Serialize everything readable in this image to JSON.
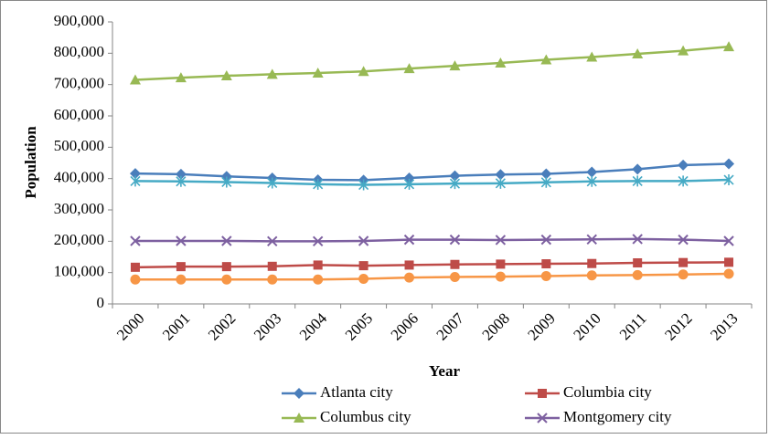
{
  "chart_data": {
    "type": "line",
    "x_label": "Year",
    "y_label": "Population",
    "categories": [
      "2000",
      "2001",
      "2002",
      "2003",
      "2004",
      "2005",
      "2006",
      "2007",
      "2008",
      "2009",
      "2010",
      "2011",
      "2012",
      "2013"
    ],
    "series": [
      {
        "name": "Atlanta city",
        "color": "#4a7ebb",
        "marker": "diamond",
        "values": [
          416000,
          414000,
          407000,
          402000,
          396000,
          395000,
          402000,
          409000,
          413000,
          415000,
          421000,
          430000,
          443000,
          447000
        ]
      },
      {
        "name": "Columbia city",
        "color": "#be4b48",
        "marker": "square",
        "values": [
          117000,
          119000,
          119000,
          120000,
          124000,
          122000,
          124000,
          126000,
          127000,
          128000,
          129000,
          131000,
          132000,
          133000
        ]
      },
      {
        "name": "Columbus city",
        "color": "#98b954",
        "marker": "triangle",
        "values": [
          715000,
          722000,
          728000,
          733000,
          737000,
          742000,
          751000,
          760000,
          769000,
          779000,
          788000,
          798000,
          808000,
          821000
        ]
      },
      {
        "name": "Montgomery city",
        "color": "#7d60a0",
        "marker": "x",
        "values": [
          201000,
          201000,
          201000,
          200000,
          200000,
          201000,
          205000,
          205000,
          204000,
          205000,
          206000,
          207000,
          205000,
          201000
        ]
      },
      {
        "color": "#46aac5",
        "marker": "asterisk",
        "values": [
          392000,
          391000,
          389000,
          386000,
          382000,
          380000,
          382000,
          384000,
          385000,
          388000,
          391000,
          392000,
          392000,
          396000
        ]
      },
      {
        "color": "#f79646",
        "marker": "circle",
        "values": [
          78000,
          78000,
          78000,
          78000,
          78000,
          80000,
          84000,
          86000,
          87000,
          89000,
          91000,
          92000,
          94000,
          96000
        ]
      }
    ],
    "ylim": [
      0,
      900000
    ],
    "yticks": [
      0,
      {
        "value": 100000,
        "label": "100,000"
      },
      {
        "value": 200000,
        "label": "200,000"
      },
      {
        "value": 300000,
        "label": "300,000"
      },
      {
        "value": 400000,
        "label": "400,000"
      },
      {
        "value": 500000,
        "label": "500,000"
      },
      {
        "value": 600000,
        "label": "600,000"
      },
      {
        "value": 700000,
        "label": "700,000"
      },
      {
        "value": 800000,
        "label": "800,000"
      },
      {
        "value": 900000,
        "label": "900,000"
      }
    ],
    "grid": false
  }
}
